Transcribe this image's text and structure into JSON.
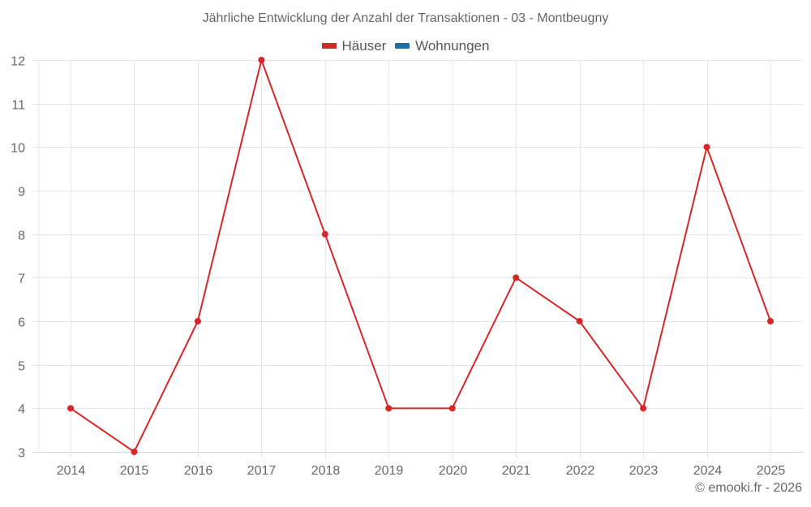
{
  "title": "Jährliche Entwicklung der Anzahl der Transaktionen - 03 - Montbeugny",
  "legend": [
    {
      "label": "Häuser",
      "color": "#d62728"
    },
    {
      "label": "Wohnungen",
      "color": "#1f6fa8"
    }
  ],
  "credit": "© emooki.fr - 2026",
  "chart_data": {
    "type": "line",
    "title": "Jährliche Entwicklung der Anzahl der Transaktionen - 03 - Montbeugny",
    "xlabel": "",
    "ylabel": "",
    "categories": [
      "2014",
      "2015",
      "2016",
      "2017",
      "2018",
      "2019",
      "2020",
      "2021",
      "2022",
      "2023",
      "2024",
      "2025"
    ],
    "series": [
      {
        "name": "Häuser",
        "color": "#d62728",
        "values": [
          4,
          3,
          6,
          12,
          8,
          4,
          4,
          7,
          6,
          4,
          10,
          6
        ]
      },
      {
        "name": "Wohnungen",
        "color": "#1f6fa8",
        "values": []
      }
    ],
    "ylim": [
      3,
      12
    ],
    "yticks": [
      3,
      4,
      5,
      6,
      7,
      8,
      9,
      10,
      11,
      12
    ],
    "grid": true,
    "legend_position": "top"
  }
}
